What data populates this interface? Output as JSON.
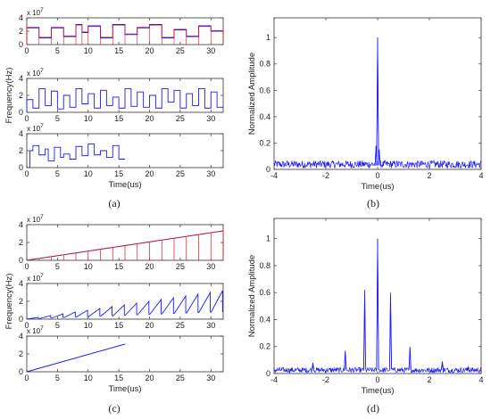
{
  "colors": {
    "series_blue": "#1a1aff",
    "series_red": "#e0141e",
    "axis": "#333333"
  },
  "panel_labels": [
    "(a)",
    "(b)",
    "(c)",
    "(d)"
  ],
  "chart_data": [
    {
      "id": "a1",
      "type": "line",
      "panel": "(a)",
      "ylabel": "",
      "xlabel": "",
      "xlim": [
        0,
        32
      ],
      "ylim": [
        0,
        4
      ],
      "xticks": [
        0,
        5,
        10,
        15,
        20,
        25,
        30
      ],
      "yticks": [
        0,
        2,
        4
      ],
      "y_multiplier": "x 10",
      "y_exponent": "7",
      "series": [
        {
          "color": "blue",
          "step": true,
          "x": [
            0,
            2,
            4,
            6,
            8,
            9,
            10,
            12,
            14,
            16,
            18,
            20,
            22,
            24,
            26,
            28,
            30,
            32
          ],
          "y": [
            2.5,
            1.0,
            2.5,
            1.2,
            3.0,
            1.8,
            2.8,
            1.0,
            3.0,
            1.5,
            2.5,
            3.0,
            1.0,
            2.2,
            1.2,
            2.8,
            2.0,
            2.8
          ]
        },
        {
          "color": "red",
          "step": true,
          "x": [
            0,
            2,
            4,
            6,
            8,
            9,
            10,
            12,
            14,
            16,
            18,
            20,
            22,
            24,
            26,
            28,
            30,
            32
          ],
          "y": [
            2.6,
            1.1,
            2.6,
            1.3,
            2.9,
            1.9,
            2.7,
            1.1,
            2.9,
            1.6,
            2.6,
            2.9,
            1.1,
            2.3,
            1.3,
            2.7,
            2.1,
            2.7
          ]
        }
      ]
    },
    {
      "id": "a2",
      "type": "line",
      "panel": "(a)",
      "ylabel": "Frequency(Hz)",
      "xlabel": "",
      "xlim": [
        0,
        32
      ],
      "ylim": [
        0,
        4
      ],
      "xticks": [
        0,
        5,
        10,
        15,
        20,
        25,
        30
      ],
      "yticks": [
        0,
        2,
        4
      ],
      "y_multiplier": "x 10",
      "y_exponent": "7",
      "series": [
        {
          "color": "blue",
          "step": true,
          "x": [
            0,
            1,
            2,
            3,
            4,
            5,
            6,
            7,
            8,
            9,
            10,
            11,
            12,
            13,
            14,
            15,
            16,
            17,
            18,
            19,
            20,
            21,
            22,
            23,
            24,
            25,
            26,
            27,
            28,
            29,
            30,
            31,
            32
          ],
          "y": [
            1.5,
            0.5,
            2.8,
            0.8,
            2.5,
            0.4,
            2.0,
            0.6,
            2.8,
            1.0,
            2.2,
            0.5,
            2.6,
            0.8,
            1.8,
            0.5,
            2.8,
            0.7,
            2.4,
            0.6,
            2.0,
            0.5,
            2.8,
            1.2,
            2.6,
            0.5,
            2.2,
            0.8,
            2.8,
            0.5,
            2.4,
            0.6,
            2.6
          ]
        }
      ]
    },
    {
      "id": "a3",
      "type": "line",
      "panel": "(a)",
      "ylabel": "",
      "xlabel": "Time(us)",
      "xlim": [
        0,
        32
      ],
      "ylim": [
        0,
        4
      ],
      "xticks": [
        0,
        5,
        10,
        15,
        20,
        25,
        30
      ],
      "yticks": [
        0,
        2,
        4
      ],
      "y_multiplier": "x 10",
      "y_exponent": "7",
      "series": [
        {
          "color": "blue",
          "step": true,
          "x": [
            0.5,
            1.0,
            2.0,
            3.0,
            3.5,
            4.5,
            5.5,
            6.0,
            7.0,
            8.0,
            9.0,
            10.0,
            11.0,
            12.0,
            13.0,
            14.0,
            15.0,
            16.0
          ],
          "y": [
            2.0,
            2.6,
            1.5,
            2.2,
            0.8,
            2.4,
            1.2,
            1.6,
            1.0,
            2.5,
            1.4,
            2.8,
            1.5,
            2.0,
            1.2,
            2.6,
            1.0,
            2.7
          ]
        }
      ]
    },
    {
      "id": "b",
      "type": "line",
      "panel": "(b)",
      "ylabel": "Normalized Amplitude",
      "xlabel": "Time(us)",
      "xlim": [
        -4,
        4
      ],
      "ylim": [
        0,
        1.15
      ],
      "xticks": [
        -4,
        -2,
        0,
        2,
        4
      ],
      "yticks": [
        0,
        0.2,
        0.4,
        0.6,
        0.8,
        1
      ],
      "peaks": [
        {
          "x": 0,
          "y": 1.0,
          "w": 0.02
        },
        {
          "x": -0.06,
          "y": 0.18,
          "w": 0.02
        },
        {
          "x": 0.06,
          "y": 0.15,
          "w": 0.02
        }
      ],
      "noise_floor": 0.045,
      "series": [
        {
          "color": "blue"
        }
      ]
    },
    {
      "id": "c1",
      "type": "line",
      "panel": "(c)",
      "ylabel": "",
      "xlabel": "",
      "xlim": [
        0,
        32
      ],
      "ylim": [
        0,
        4
      ],
      "xticks": [
        0,
        5,
        10,
        15,
        20,
        25,
        30
      ],
      "yticks": [
        0,
        2,
        4
      ],
      "y_multiplier": "x 10",
      "y_exponent": "7",
      "series": [
        {
          "color": "blue",
          "x": [
            0,
            32
          ],
          "y": [
            0,
            3.3
          ]
        },
        {
          "color": "red",
          "x": [
            0,
            32
          ],
          "y": [
            0,
            3.3
          ]
        }
      ],
      "sawtooth_period": 2
    },
    {
      "id": "c2",
      "type": "line",
      "panel": "(c)",
      "ylabel": "Frequency(Hz)",
      "xlabel": "",
      "xlim": [
        0,
        32
      ],
      "ylim": [
        0,
        4
      ],
      "xticks": [
        0,
        5,
        10,
        15,
        20,
        25,
        30
      ],
      "yticks": [
        0,
        2,
        4
      ],
      "y_multiplier": "x 10",
      "y_exponent": "7",
      "series": [
        {
          "color": "blue",
          "x": [
            0,
            32
          ],
          "y": [
            0,
            3.2
          ]
        }
      ],
      "sawtooth_period": 2
    },
    {
      "id": "c3",
      "type": "line",
      "panel": "(c)",
      "ylabel": "",
      "xlabel": "Time(us)",
      "xlim": [
        0,
        32
      ],
      "ylim": [
        0,
        4
      ],
      "xticks": [
        0,
        5,
        10,
        15,
        20,
        25,
        30
      ],
      "yticks": [
        0,
        2,
        4
      ],
      "y_multiplier": "x 10",
      "y_exponent": "7",
      "series": [
        {
          "color": "blue",
          "x": [
            0,
            16
          ],
          "y": [
            0,
            3.1
          ]
        }
      ]
    },
    {
      "id": "d",
      "type": "line",
      "panel": "(d)",
      "ylabel": "Normalized Amplitude",
      "xlabel": "Time(us)",
      "xlim": [
        -4,
        4
      ],
      "ylim": [
        0,
        1.15
      ],
      "xticks": [
        -4,
        -2,
        0,
        2,
        4
      ],
      "yticks": [
        0,
        0.2,
        0.4,
        0.6,
        0.8,
        1
      ],
      "peaks": [
        {
          "x": 0,
          "y": 1.0,
          "w": 0.02
        },
        {
          "x": -0.5,
          "y": 0.62,
          "w": 0.02
        },
        {
          "x": 0.5,
          "y": 0.6,
          "w": 0.02
        },
        {
          "x": -1.25,
          "y": 0.17,
          "w": 0.02
        },
        {
          "x": 1.25,
          "y": 0.2,
          "w": 0.02
        },
        {
          "x": -2.5,
          "y": 0.08,
          "w": 0.02
        },
        {
          "x": 2.5,
          "y": 0.09,
          "w": 0.02
        },
        {
          "x": 3.5,
          "y": 0.05,
          "w": 0.02
        }
      ],
      "noise_floor": 0.03,
      "series": [
        {
          "color": "blue"
        }
      ]
    }
  ]
}
